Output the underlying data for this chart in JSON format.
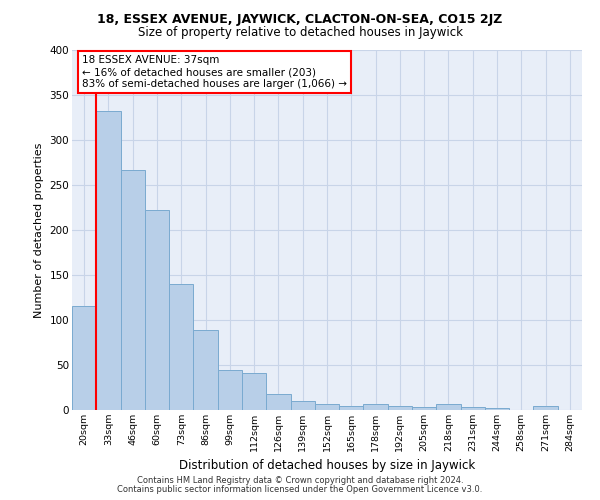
{
  "title1": "18, ESSEX AVENUE, JAYWICK, CLACTON-ON-SEA, CO15 2JZ",
  "title2": "Size of property relative to detached houses in Jaywick",
  "xlabel": "Distribution of detached houses by size in Jaywick",
  "ylabel": "Number of detached properties",
  "categories": [
    "20sqm",
    "33sqm",
    "46sqm",
    "60sqm",
    "73sqm",
    "86sqm",
    "99sqm",
    "112sqm",
    "126sqm",
    "139sqm",
    "152sqm",
    "165sqm",
    "178sqm",
    "192sqm",
    "205sqm",
    "218sqm",
    "231sqm",
    "244sqm",
    "258sqm",
    "271sqm",
    "284sqm"
  ],
  "values": [
    116,
    332,
    267,
    222,
    140,
    89,
    45,
    41,
    18,
    10,
    7,
    5,
    7,
    4,
    3,
    7,
    3,
    2,
    0,
    5,
    0
  ],
  "bar_color": "#b8cfe8",
  "bar_edge_color": "#7aaad0",
  "grid_color": "#c8d4e8",
  "bg_color": "#e8eef8",
  "annotation_text_line1": "18 ESSEX AVENUE: 37sqm",
  "annotation_text_line2": "← 16% of detached houses are smaller (203)",
  "annotation_text_line3": "83% of semi-detached houses are larger (1,066) →",
  "property_line_x": 0.5,
  "ylim_max": 400,
  "yticks": [
    0,
    50,
    100,
    150,
    200,
    250,
    300,
    350,
    400
  ],
  "footnote1": "Contains HM Land Registry data © Crown copyright and database right 2024.",
  "footnote2": "Contains public sector information licensed under the Open Government Licence v3.0."
}
